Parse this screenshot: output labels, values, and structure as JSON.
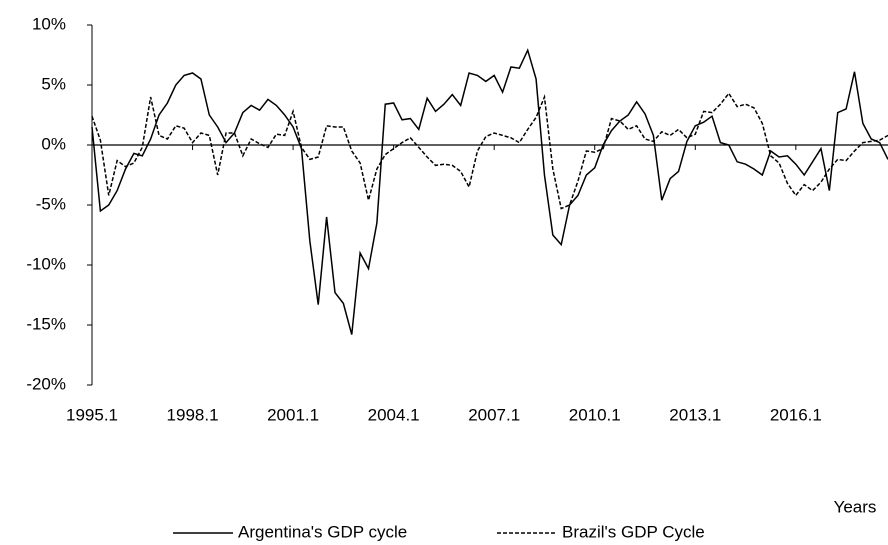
{
  "chart_data": {
    "type": "line",
    "x_label": "Years",
    "categories": [
      "1995.1",
      null,
      null,
      null,
      null,
      null,
      null,
      null,
      null,
      null,
      null,
      null,
      "1998.1",
      null,
      null,
      null,
      null,
      null,
      null,
      null,
      null,
      null,
      null,
      null,
      "2001.1",
      null,
      null,
      null,
      null,
      null,
      null,
      null,
      null,
      null,
      null,
      null,
      "2004.1",
      null,
      null,
      null,
      null,
      null,
      null,
      null,
      null,
      null,
      null,
      null,
      "2007.1",
      null,
      null,
      null,
      null,
      null,
      null,
      null,
      null,
      null,
      null,
      null,
      "2010.1",
      null,
      null,
      null,
      null,
      null,
      null,
      null,
      null,
      null,
      null,
      null,
      "2013.1",
      null,
      null,
      null,
      null,
      null,
      null,
      null,
      null,
      null,
      null,
      null,
      "2016.1",
      null,
      null,
      null,
      null,
      null,
      null,
      null,
      null,
      null,
      null,
      null
    ],
    "series": [
      {
        "name": "Argentina's GDP cycle",
        "color": "#000000",
        "dash": "solid",
        "values": [
          1.5,
          -5.5,
          -5.0,
          -3.8,
          -2.0,
          -0.7,
          -0.9,
          0.5,
          2.5,
          3.5,
          5.0,
          5.8,
          6.0,
          5.5,
          2.5,
          1.5,
          0.2,
          1.0,
          2.7,
          3.3,
          2.9,
          3.8,
          3.3,
          2.5,
          1.5,
          -0.3,
          -8.0,
          -13.3,
          -6.0,
          -12.3,
          -13.2,
          -15.8,
          -9.0,
          -10.3,
          -6.5,
          3.4,
          3.5,
          2.1,
          2.2,
          1.3,
          3.9,
          2.8,
          3.4,
          4.2,
          3.3,
          6.0,
          5.8,
          5.3,
          5.8,
          4.4,
          6.5,
          6.4,
          7.9,
          5.5,
          -2.5,
          -7.5,
          -8.3,
          -5.0,
          -4.2,
          -2.5,
          -1.9,
          0.0,
          1.2,
          2.0,
          2.5,
          3.6,
          2.6,
          0.8,
          -4.6,
          -2.8,
          -2.2,
          0.3,
          1.6,
          1.9,
          2.4,
          0.2,
          0.0,
          -1.4,
          -1.6,
          -2.0,
          -2.5,
          -0.5,
          -1.0,
          -0.9,
          -1.6,
          -2.5,
          -1.4,
          -0.3,
          -3.8,
          2.7,
          3.0,
          6.1,
          1.8,
          0.5,
          0.2,
          -1.2
        ]
      },
      {
        "name": "Brazil's GDP Cycle",
        "color": "#000000",
        "dash": "dashed",
        "values": [
          2.4,
          0.4,
          -4.2,
          -1.3,
          -1.8,
          -1.5,
          -0.2,
          4.0,
          0.8,
          0.5,
          1.6,
          1.4,
          0.2,
          1.0,
          0.8,
          -2.5,
          1.0,
          1.0,
          -0.9,
          0.5,
          0.1,
          -0.2,
          0.9,
          0.8,
          2.8,
          -0.2,
          -1.2,
          -1.0,
          1.6,
          1.5,
          1.5,
          -0.5,
          -1.5,
          -4.6,
          -2.0,
          -0.8,
          -0.3,
          0.2,
          0.6,
          -0.2,
          -1.0,
          -1.7,
          -1.6,
          -1.7,
          -2.2,
          -3.5,
          -0.5,
          0.7,
          1.0,
          0.8,
          0.6,
          0.2,
          1.3,
          2.3,
          4.0,
          -2.0,
          -5.3,
          -5.0,
          -3.0,
          -0.5,
          -0.6,
          -0.3,
          2.2,
          2.0,
          1.3,
          1.6,
          0.5,
          0.3,
          1.1,
          0.8,
          1.3,
          0.6,
          0.9,
          2.8,
          2.7,
          3.4,
          4.3,
          3.2,
          3.4,
          3.1,
          1.8,
          -0.9,
          -1.5,
          -3.2,
          -4.2,
          -3.3,
          -3.8,
          -3.1,
          -2.0,
          -1.2,
          -1.3,
          -0.5,
          0.2,
          0.3,
          0.4,
          0.8
        ]
      }
    ],
    "ylim": [
      -20,
      10
    ],
    "yticks": [
      {
        "value": -20,
        "label": "-20%"
      },
      {
        "value": -15,
        "label": "-15%"
      },
      {
        "value": -10,
        "label": "-10%"
      },
      {
        "value": -5,
        "label": "-5%"
      },
      {
        "value": 0,
        "label": "0%"
      },
      {
        "value": 5,
        "label": "5%"
      },
      {
        "value": 10,
        "label": "10%"
      }
    ],
    "legend": "bottom"
  }
}
